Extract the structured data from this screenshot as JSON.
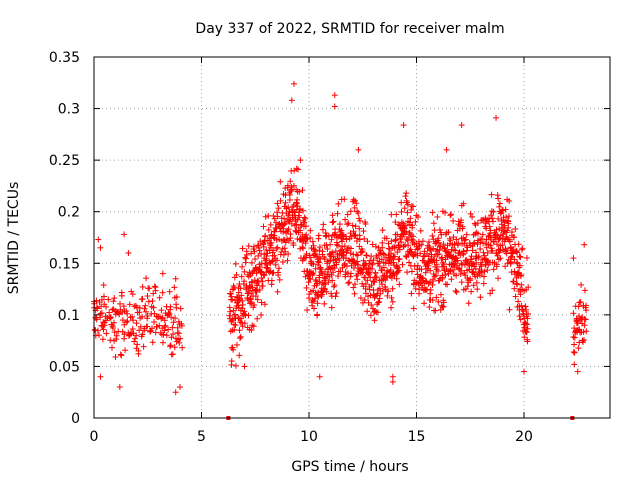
{
  "chart_data": {
    "type": "scatter",
    "title": "Day 337 of 2022, SRMTID for receiver malm",
    "xlabel": "GPS time / hours",
    "ylabel": "SRMTID / TECUs",
    "xlim": [
      0,
      24
    ],
    "ylim": [
      0,
      0.35
    ],
    "x_ticks": [
      0,
      5,
      10,
      15,
      20
    ],
    "x_tick_labels": [
      "0",
      "5",
      "10",
      "15",
      "20"
    ],
    "y_ticks": [
      0,
      0.05,
      0.1,
      0.15,
      0.2,
      0.25,
      0.3,
      0.35
    ],
    "y_tick_labels": [
      "0",
      "0.05",
      "0.1",
      "0.15",
      "0.2",
      "0.25",
      "0.3",
      "0.35"
    ],
    "grid": true,
    "marker": "+",
    "color": "#ff0000",
    "zero_markers_x": [
      6.25,
      22.25
    ],
    "series": [
      {
        "name": "SRMTID",
        "segments": [
          {
            "x_range": [
              0,
              4.1
            ],
            "step": 0.028,
            "profile": [
              [
                0,
                0.1
              ],
              [
                0.5,
                0.095
              ],
              [
                1.0,
                0.09
              ],
              [
                1.5,
                0.095
              ],
              [
                2.0,
                0.09
              ],
              [
                2.5,
                0.095
              ],
              [
                3.0,
                0.1
              ],
              [
                3.5,
                0.095
              ],
              [
                4.1,
                0.08
              ]
            ],
            "spread": 0.028,
            "highlights": [
              [
                0.2,
                0.173
              ],
              [
                0.3,
                0.165
              ],
              [
                1.4,
                0.178
              ],
              [
                1.6,
                0.16
              ],
              [
                3.2,
                0.14
              ],
              [
                3.8,
                0.135
              ],
              [
                0.3,
                0.04
              ],
              [
                1.2,
                0.03
              ],
              [
                3.8,
                0.025
              ],
              [
                4.0,
                0.03
              ]
            ]
          },
          {
            "x_range": [
              6.3,
              20.2
            ],
            "step": 0.014,
            "profile": [
              [
                6.3,
                0.09
              ],
              [
                7,
                0.12
              ],
              [
                8,
                0.15
              ],
              [
                9,
                0.19
              ],
              [
                9.5,
                0.2
              ],
              [
                10,
                0.14
              ],
              [
                11,
                0.15
              ],
              [
                12,
                0.17
              ],
              [
                13,
                0.13
              ],
              [
                14,
                0.15
              ],
              [
                14.5,
                0.19
              ],
              [
                15,
                0.15
              ],
              [
                16,
                0.15
              ],
              [
                17,
                0.16
              ],
              [
                18,
                0.16
              ],
              [
                19,
                0.18
              ],
              [
                19.5,
                0.15
              ],
              [
                20.2,
                0.1
              ]
            ],
            "spread": 0.038,
            "highlights": [
              [
                9.3,
                0.324
              ],
              [
                9.2,
                0.308
              ],
              [
                11.2,
                0.313
              ],
              [
                11.2,
                0.302
              ],
              [
                14.4,
                0.284
              ],
              [
                17.1,
                0.284
              ],
              [
                18.7,
                0.291
              ],
              [
                9.6,
                0.25
              ],
              [
                12.3,
                0.26
              ],
              [
                16.4,
                0.26
              ],
              [
                13.9,
                0.04
              ],
              [
                13.9,
                0.035
              ],
              [
                20.0,
                0.045
              ],
              [
                10.5,
                0.04
              ],
              [
                7.0,
                0.05
              ]
            ]
          },
          {
            "x_range": [
              22.3,
              22.9
            ],
            "step": 0.02,
            "profile": [
              [
                22.3,
                0.08
              ],
              [
                22.6,
                0.09
              ],
              [
                22.9,
                0.1
              ]
            ],
            "spread": 0.03,
            "highlights": [
              [
                22.3,
                0.155
              ],
              [
                22.8,
                0.168
              ],
              [
                22.5,
                0.045
              ]
            ]
          }
        ]
      }
    ]
  }
}
